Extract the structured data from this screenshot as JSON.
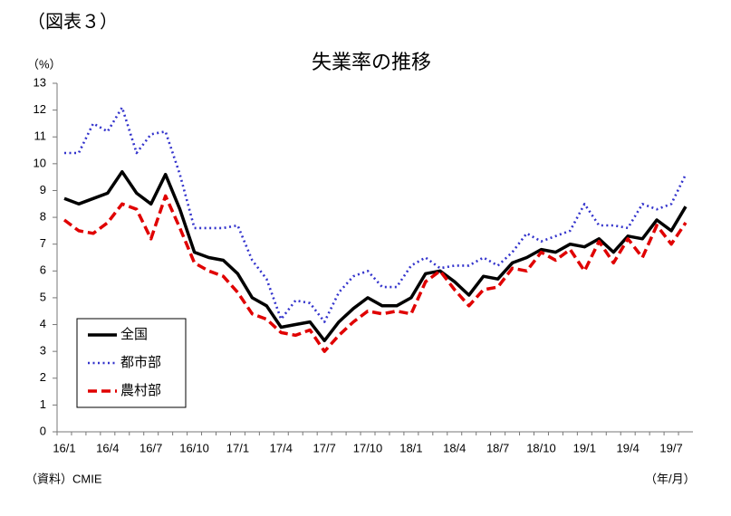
{
  "chart_data": {
    "type": "line",
    "header": "（図表３）",
    "title": "失業率の推移",
    "y_unit": "（%）",
    "x_unit": "（年/月）",
    "source": "（資料）CMIE",
    "categories": [
      "16/1",
      null,
      null,
      "16/4",
      null,
      null,
      "16/7",
      null,
      null,
      "16/10",
      null,
      null,
      "17/1",
      null,
      null,
      "17/4",
      null,
      null,
      "17/7",
      null,
      null,
      "17/10",
      null,
      null,
      "18/1",
      null,
      null,
      "18/4",
      null,
      null,
      "18/7",
      null,
      null,
      "18/10",
      null,
      null,
      "19/1",
      null,
      null,
      "19/4",
      null,
      null,
      "19/7",
      null
    ],
    "series": [
      {
        "name": "全国",
        "color": "#000000",
        "style": "solid",
        "values": [
          8.7,
          8.5,
          8.7,
          8.9,
          9.7,
          8.9,
          8.5,
          9.6,
          8.3,
          6.7,
          6.5,
          6.4,
          5.9,
          5.0,
          4.7,
          3.9,
          4.0,
          4.1,
          3.4,
          4.1,
          4.6,
          5.0,
          4.7,
          4.7,
          5.0,
          5.9,
          6.0,
          5.6,
          5.1,
          5.8,
          5.7,
          6.3,
          6.5,
          6.8,
          6.7,
          7.0,
          6.9,
          7.2,
          6.7,
          7.3,
          7.2,
          7.9,
          7.5,
          8.4
        ]
      },
      {
        "name": "都市部",
        "color": "#3333cc",
        "style": "dotted",
        "values": [
          10.4,
          10.4,
          11.5,
          11.2,
          12.1,
          10.4,
          11.1,
          11.2,
          9.6,
          7.6,
          7.6,
          7.6,
          7.7,
          6.4,
          5.7,
          4.2,
          4.9,
          4.8,
          4.1,
          5.2,
          5.8,
          6.0,
          5.4,
          5.4,
          6.2,
          6.5,
          6.1,
          6.2,
          6.2,
          6.5,
          6.2,
          6.7,
          7.4,
          7.1,
          7.3,
          7.5,
          8.5,
          7.7,
          7.7,
          7.6,
          8.5,
          8.3,
          8.5,
          9.6
        ]
      },
      {
        "name": "農村部",
        "color": "#e00000",
        "style": "dashed",
        "values": [
          7.9,
          7.5,
          7.4,
          7.8,
          8.5,
          8.3,
          7.2,
          8.8,
          7.6,
          6.3,
          6.0,
          5.8,
          5.2,
          4.4,
          4.2,
          3.7,
          3.6,
          3.8,
          3.0,
          3.6,
          4.1,
          4.5,
          4.4,
          4.5,
          4.4,
          5.6,
          6.0,
          5.3,
          4.7,
          5.3,
          5.4,
          6.1,
          6.0,
          6.7,
          6.4,
          6.8,
          6.0,
          7.1,
          6.3,
          7.2,
          6.5,
          7.7,
          7.0,
          7.8
        ]
      }
    ],
    "ylim": [
      0,
      13
    ],
    "yticks": [
      0,
      1,
      2,
      3,
      4,
      5,
      6,
      7,
      8,
      9,
      10,
      11,
      12,
      13
    ],
    "grid": false,
    "legend": "lower left"
  }
}
